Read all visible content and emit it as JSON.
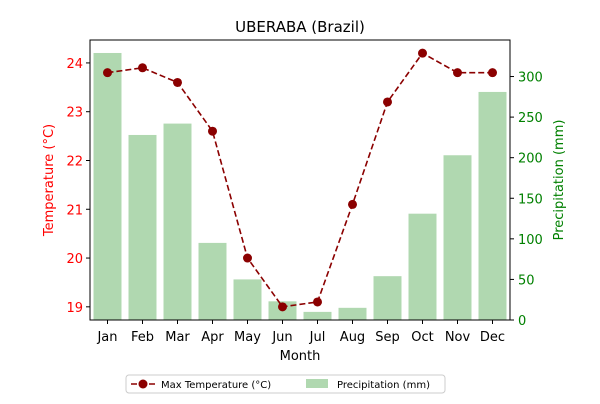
{
  "chart_data": {
    "type": "bar+line",
    "title": "UBERABA (Brazil)",
    "xlabel": "Month",
    "ylabel_left": "Temperature (°C)",
    "ylabel_right": "Precipitation (mm)",
    "categories": [
      "Jan",
      "Feb",
      "Mar",
      "Apr",
      "May",
      "Jun",
      "Jul",
      "Aug",
      "Sep",
      "Oct",
      "Nov",
      "Dec"
    ],
    "series": [
      {
        "name": "Max Temperature (°C)",
        "type": "line",
        "axis": "left",
        "color": "#8b0000",
        "values": [
          23.8,
          23.9,
          23.6,
          22.6,
          20.0,
          19.0,
          19.1,
          21.1,
          23.2,
          24.2,
          23.8,
          23.8
        ]
      },
      {
        "name": "Precipitation (mm)",
        "type": "bar",
        "axis": "right",
        "color": "#b0d8b0",
        "values": [
          329,
          228,
          242,
          95,
          50,
          23,
          10,
          15,
          54,
          131,
          203,
          281
        ]
      }
    ],
    "ylim_left": [
      18.73,
      24.47
    ],
    "ylim_right": [
      0,
      345
    ],
    "yticks_left": [
      "19",
      "20",
      "21",
      "22",
      "23",
      "24"
    ],
    "yticks_right": [
      "0",
      "50",
      "100",
      "150",
      "200",
      "250",
      "300"
    ],
    "left_axis_color": "#ff0000",
    "right_axis_color": "#008000",
    "grid": false,
    "legend_position": "bottom-center"
  }
}
